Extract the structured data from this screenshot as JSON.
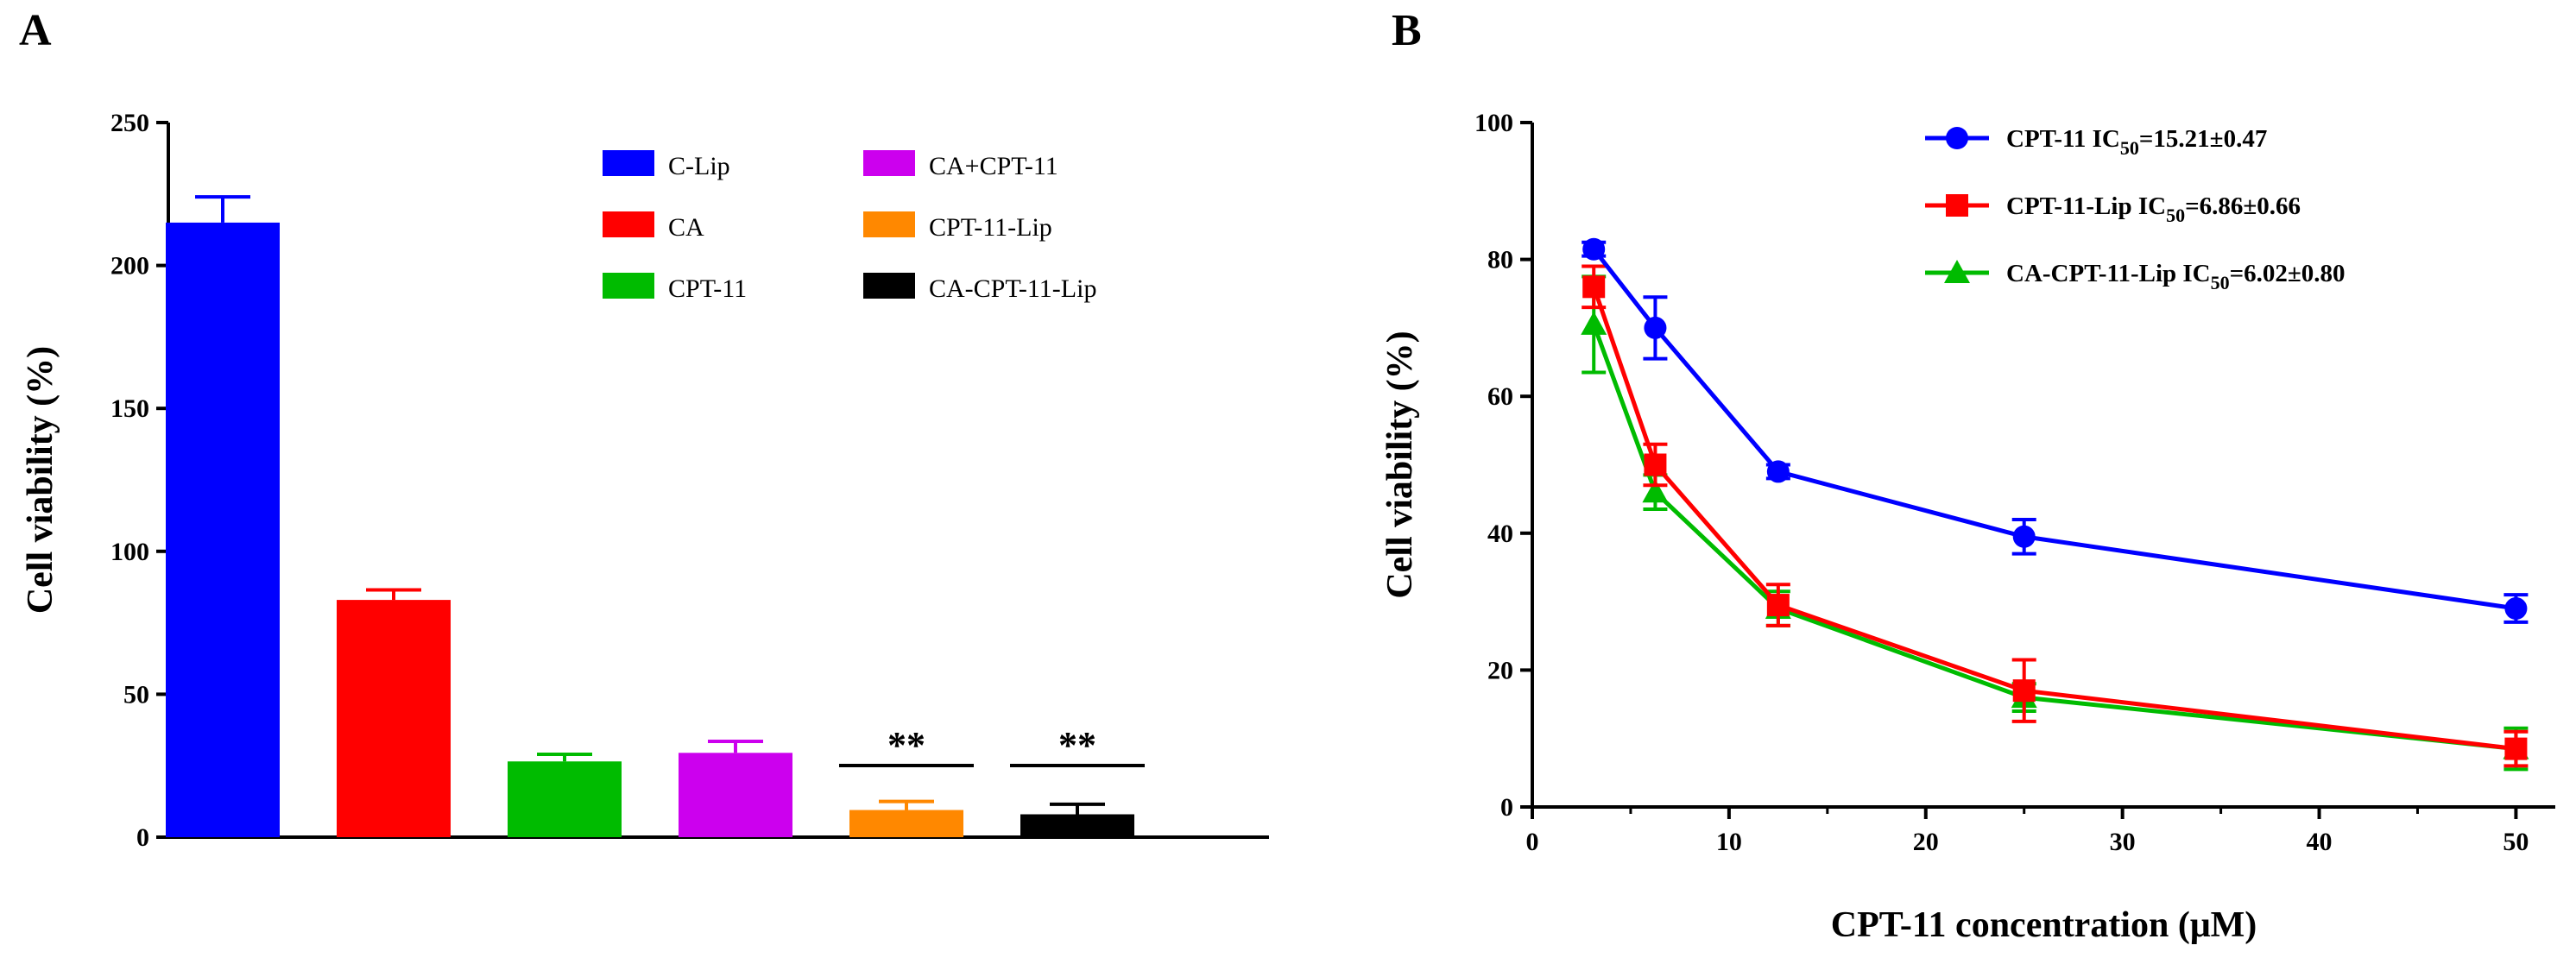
{
  "chart_data": [
    {
      "panel": "A",
      "type": "bar",
      "ylabel": "Cell viability (%)",
      "ylim": [
        0,
        250
      ],
      "yticks": [
        0,
        50,
        100,
        150,
        200,
        250
      ],
      "categories": [
        "C-Lip",
        "CA",
        "CPT-11",
        "CA+CPT-11",
        "CPT-11-Lip",
        "CA-CPT-11-Lip"
      ],
      "values": [
        215,
        83,
        26.5,
        29.5,
        9.5,
        8
      ],
      "errors": [
        9,
        3.5,
        2.5,
        4,
        3,
        3.5
      ],
      "colors": [
        "#0000FF",
        "#FF0000",
        "#00BB00",
        "#CC00EE",
        "#FF8800",
        "#000000"
      ],
      "significance": [
        "",
        "",
        "",
        "",
        "**",
        "**"
      ],
      "legend_position": "top-right",
      "grid": false
    },
    {
      "panel": "B",
      "type": "line",
      "xlabel": "CPT-11 concentration (μM)",
      "ylabel": "Cell viability (%)",
      "xlim": [
        0,
        52
      ],
      "ylim": [
        0,
        100
      ],
      "xticks": [
        0,
        10,
        20,
        30,
        40,
        50
      ],
      "yticks": [
        0,
        20,
        40,
        60,
        80,
        100
      ],
      "x": [
        3.125,
        6.25,
        12.5,
        25,
        50
      ],
      "series": [
        {
          "name": "CPT-11",
          "ic50_text": "15.21±0.47",
          "color": "#0000FF",
          "marker": "circle",
          "values": [
            81.5,
            70,
            49,
            39.5,
            29
          ],
          "errors": [
            1,
            4.5,
            1,
            2.5,
            2
          ]
        },
        {
          "name": "CPT-11-Lip",
          "ic50_text": "6.86±0.66",
          "color": "#FF0000",
          "marker": "square",
          "values": [
            76,
            50,
            29.5,
            17,
            8.5
          ],
          "errors": [
            3,
            3,
            3,
            4.5,
            2.5
          ]
        },
        {
          "name": "CA-CPT-11-Lip",
          "ic50_text": "6.02±0.80",
          "color": "#00BB00",
          "marker": "triangle",
          "values": [
            70.5,
            46,
            29,
            16,
            8.5
          ],
          "errors": [
            7,
            2.5,
            2.5,
            2,
            3
          ]
        }
      ],
      "ic50_label": "IC",
      "ic50_subscript": "50",
      "legend_position": "top-right",
      "grid": false
    }
  ]
}
